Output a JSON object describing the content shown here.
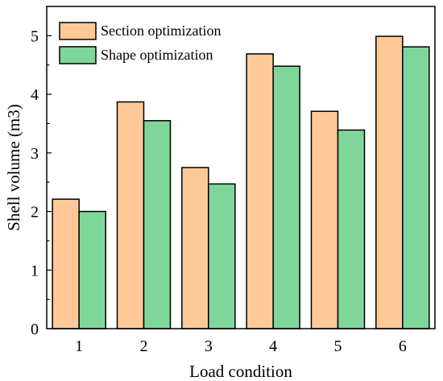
{
  "chart_data": {
    "type": "bar",
    "categories": [
      "1",
      "2",
      "3",
      "4",
      "5",
      "6"
    ],
    "series": [
      {
        "name": "Section optimization",
        "color": "#FFC997",
        "values": [
          2.21,
          3.87,
          2.75,
          4.69,
          3.71,
          4.99
        ]
      },
      {
        "name": "Shape optimization",
        "color": "#7FD69B",
        "values": [
          2.0,
          3.55,
          2.47,
          4.48,
          3.39,
          4.81
        ]
      }
    ],
    "xlabel": "Load condition",
    "ylabel": "Shell volume (m3)",
    "ylim": [
      0,
      5.5
    ],
    "yticks": [
      "0",
      "1",
      "2",
      "3",
      "4",
      "5"
    ],
    "legend": "top-left",
    "grid": false
  }
}
